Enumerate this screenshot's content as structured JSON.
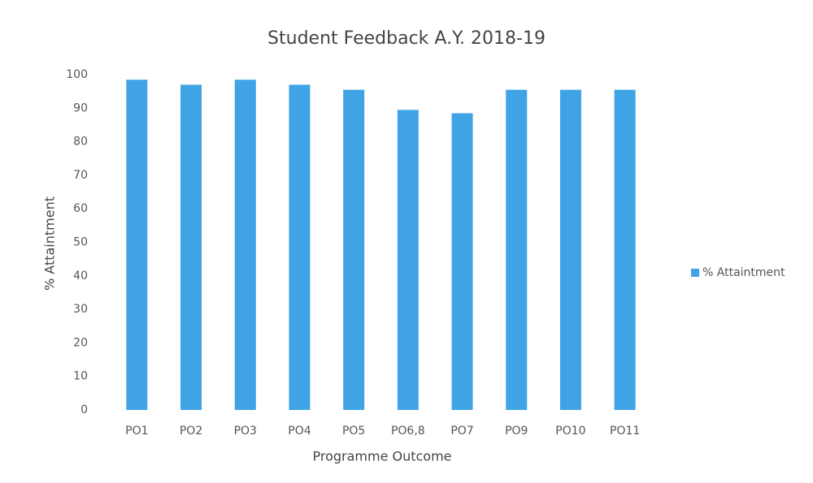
{
  "chart_data": {
    "type": "bar",
    "title": "Student Feedback A.Y. 2018-19",
    "x_label": "Programme Outcome",
    "y_label": "% Attaintment",
    "categories": [
      "PO1",
      "PO2",
      "PO3",
      "PO4",
      "PO5",
      "PO6,8",
      "PO7",
      "PO9",
      "PO10",
      "PO11"
    ],
    "series": [
      {
        "name": "% Attaintment",
        "color": "#3fa3e6",
        "values": [
          98.5,
          97,
          98.5,
          97,
          95.5,
          89.5,
          88.5,
          95.5,
          95.5,
          95.5
        ]
      }
    ],
    "ylim": [
      0,
      100
    ],
    "yticks": [
      0,
      10,
      20,
      30,
      40,
      50,
      60,
      70,
      80,
      90,
      100
    ],
    "grid": false,
    "legend": "right"
  }
}
